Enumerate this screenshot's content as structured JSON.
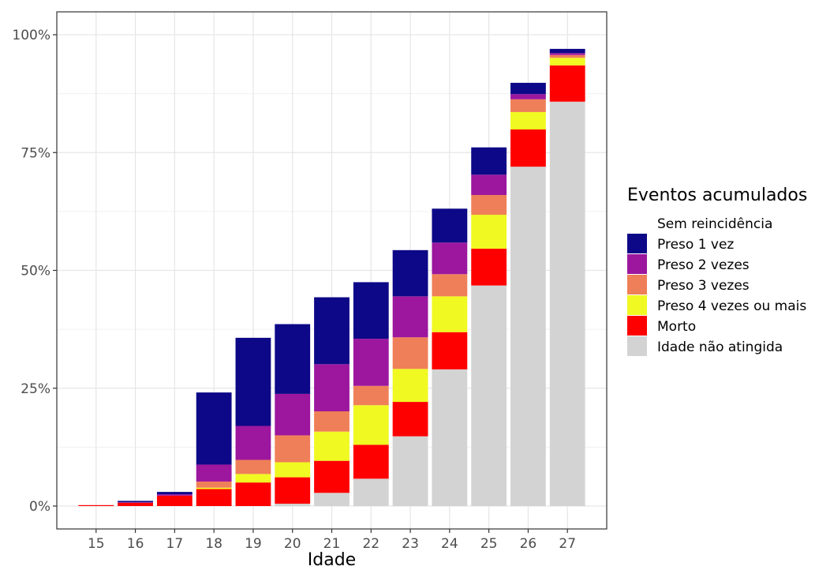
{
  "chart_data": {
    "type": "bar",
    "stacked": true,
    "xlabel": "Idade",
    "ylabel": "",
    "ylim": [
      0,
      1.08
    ],
    "y_ticks": [
      0,
      0.25,
      0.5,
      0.75,
      1.0
    ],
    "y_tick_labels": [
      "0%",
      "25%",
      "50%",
      "75%",
      "100%"
    ],
    "grid": true,
    "legend_position": "right",
    "legend_title": "Eventos acumulados",
    "categories": [
      "15",
      "16",
      "17",
      "18",
      "19",
      "20",
      "21",
      "22",
      "23",
      "24",
      "25",
      "26",
      "27"
    ],
    "series": [
      {
        "name": "Idade não atingida",
        "color": "#d3d3d3",
        "values": [
          0,
          0,
          0,
          0,
          0,
          0.005,
          0.028,
          0.058,
          0.148,
          0.29,
          0.468,
          0.72,
          0.858
        ]
      },
      {
        "name": "Morto",
        "color": "#ff0000",
        "values": [
          0.002,
          0.007,
          0.022,
          0.036,
          0.05,
          0.056,
          0.068,
          0.072,
          0.073,
          0.079,
          0.078,
          0.079,
          0.077
        ]
      },
      {
        "name": "Preso 4 vezes ou mais",
        "color": "#f0f922",
        "values": [
          0,
          0,
          0,
          0.003,
          0.018,
          0.032,
          0.062,
          0.084,
          0.07,
          0.076,
          0.072,
          0.037,
          0.016
        ]
      },
      {
        "name": "Preso 3 vezes",
        "color": "#ef7f58",
        "values": [
          0,
          0,
          0,
          0.013,
          0.03,
          0.057,
          0.043,
          0.041,
          0.067,
          0.047,
          0.042,
          0.027,
          0.006
        ]
      },
      {
        "name": "Preso 2 vezes",
        "color": "#9c179e",
        "values": [
          0,
          0.001,
          0.003,
          0.036,
          0.072,
          0.088,
          0.1,
          0.1,
          0.087,
          0.067,
          0.043,
          0.011,
          0.004
        ]
      },
      {
        "name": "Preso 1 vez",
        "color": "#0d0887",
        "values": [
          0,
          0.003,
          0.005,
          0.153,
          0.187,
          0.148,
          0.142,
          0.12,
          0.098,
          0.072,
          0.058,
          0.024,
          0.009
        ]
      }
    ],
    "legend_entries": [
      {
        "name": "Sem reincidência",
        "color": "#ffffff"
      },
      {
        "name": "Preso 1 vez",
        "color": "#0d0887"
      },
      {
        "name": "Preso 2 vezes",
        "color": "#9c179e"
      },
      {
        "name": "Preso 3 vezes",
        "color": "#ef7f58"
      },
      {
        "name": "Preso 4 vezes ou mais",
        "color": "#f0f922"
      },
      {
        "name": "Morto",
        "color": "#ff0000"
      },
      {
        "name": "Idade não atingida",
        "color": "#d3d3d3"
      }
    ]
  }
}
